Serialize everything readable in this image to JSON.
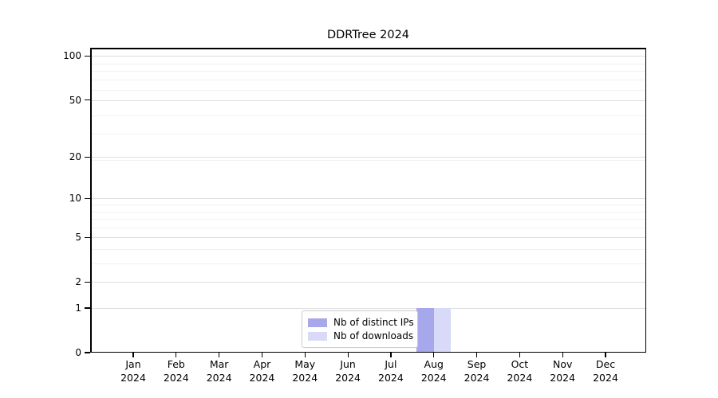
{
  "chart_data": {
    "type": "bar",
    "title": "DDRTree 2024",
    "x": {
      "months": [
        "Jan",
        "Feb",
        "Mar",
        "Apr",
        "May",
        "Jun",
        "Jul",
        "Aug",
        "Sep",
        "Oct",
        "Nov",
        "Dec"
      ],
      "year": "2024"
    },
    "series": [
      {
        "name": "Nb of distinct IPs",
        "color": "#a7a7ec",
        "values": [
          0,
          0,
          0,
          0,
          0,
          0,
          0,
          1,
          0,
          0,
          0,
          0
        ]
      },
      {
        "name": "Nb of downloads",
        "color": "#d9d9f8",
        "values": [
          0,
          0,
          0,
          0,
          0,
          0,
          0,
          1,
          0,
          0,
          0,
          0
        ]
      }
    ],
    "y_axis": {
      "scale": "log1p",
      "tick_values": [
        100,
        50,
        20,
        10,
        5,
        2,
        1,
        0
      ],
      "tick_labels": [
        "100",
        "50",
        "20",
        "10",
        "5",
        "2",
        "1",
        "0"
      ],
      "major_gridline_values": [
        100,
        50,
        20,
        10,
        5,
        2,
        1
      ],
      "minor_gridline_values": [
        89,
        79,
        69,
        59,
        39,
        29,
        19,
        9,
        8,
        7,
        6,
        4,
        3
      ],
      "max": 113
    },
    "legend": {
      "position": "lower center"
    },
    "grid": true
  },
  "colors": {
    "major_grid": "#dedede",
    "minor_grid": "#f1f1f1",
    "spine": "#000000",
    "legend_border": "#cccccc",
    "background": "#ffffff"
  }
}
